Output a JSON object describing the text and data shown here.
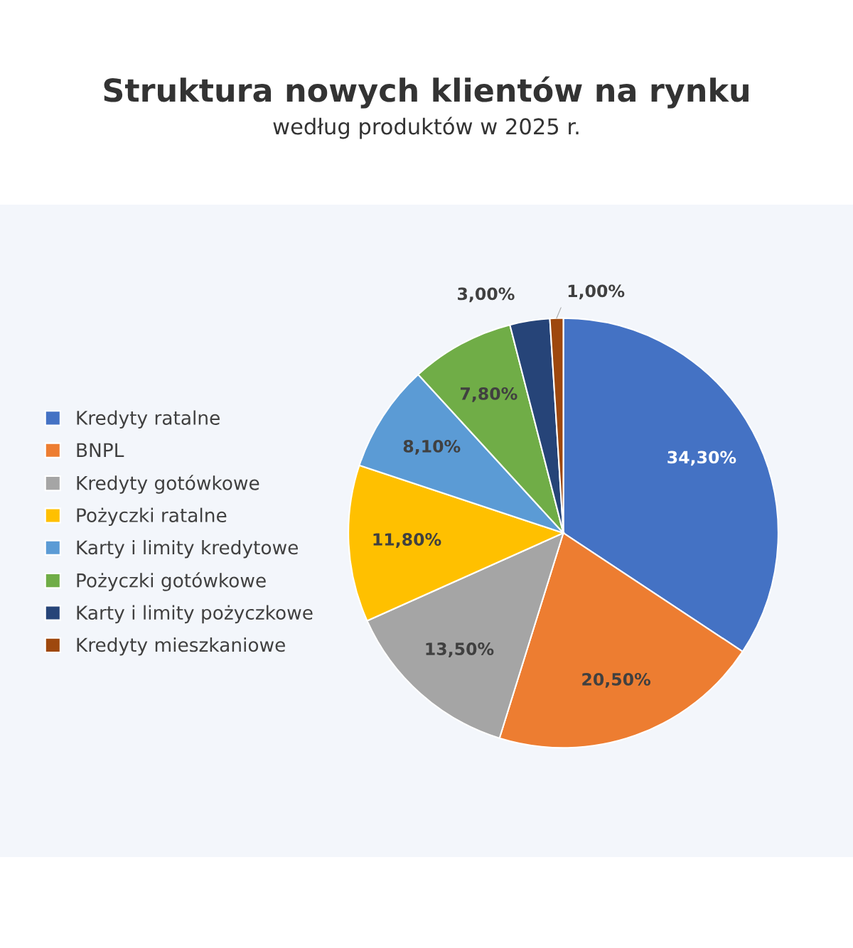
{
  "chart_data": {
    "type": "pie",
    "title": "Struktura nowych klientów na rynku",
    "subtitle": "według produktów w 2025 r.",
    "categories": [
      "Kredyty ratalne",
      "BNPL",
      "Kredyty gotówkowe",
      "Pożyczki ratalne",
      "Karty i limity kredytowe",
      "Pożyczki gotówkowe",
      "Karty i limity pożyczkowe",
      "Kredyty mieszkaniowe"
    ],
    "values": [
      34.3,
      20.5,
      13.5,
      11.8,
      8.1,
      7.8,
      3.0,
      1.0
    ],
    "colors": [
      "#4472c4",
      "#ed7d31",
      "#a5a5a5",
      "#ffc000",
      "#5b9bd5",
      "#70ad47",
      "#264478",
      "#9e480e"
    ],
    "value_labels": [
      "34,30%",
      "20,50%",
      "13,50%",
      "11,80%",
      "8,10%",
      "7,80%",
      "3,00%",
      "1,00%"
    ],
    "legend": "left"
  }
}
